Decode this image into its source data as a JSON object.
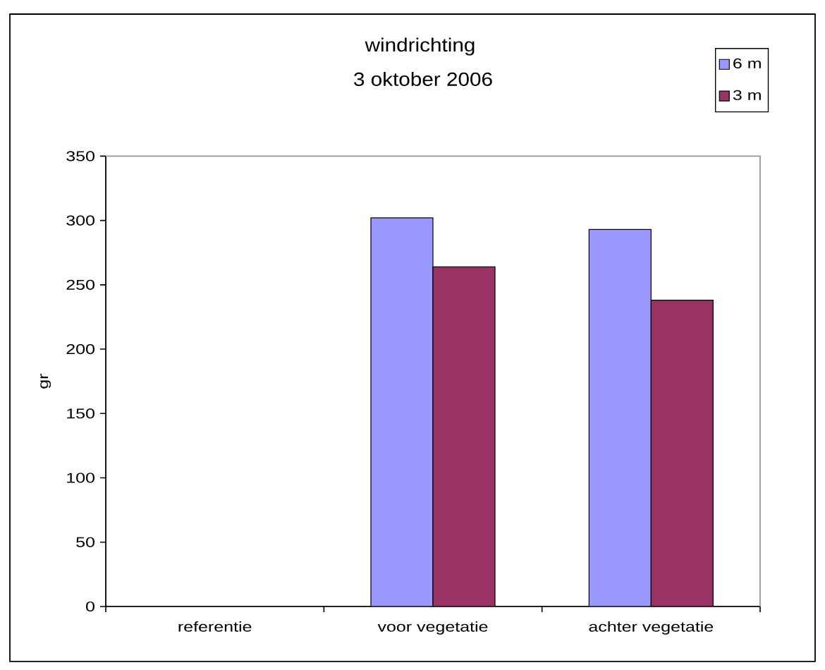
{
  "chart_data": {
    "type": "bar",
    "title": "windrichting",
    "subtitle": "3 oktober 2006",
    "ylabel": "gr",
    "categories": [
      "referentie",
      "voor vegetatie",
      "achter vegetatie"
    ],
    "series": [
      {
        "name": "6 m",
        "color": "#9999ff",
        "values": [
          null,
          302,
          293
        ]
      },
      {
        "name": "3 m",
        "color": "#993366",
        "values": [
          null,
          264,
          238
        ]
      }
    ],
    "ylim": [
      0,
      350
    ],
    "yticks": [
      0,
      50,
      100,
      150,
      200,
      250,
      300,
      350
    ],
    "legend": "top right"
  }
}
